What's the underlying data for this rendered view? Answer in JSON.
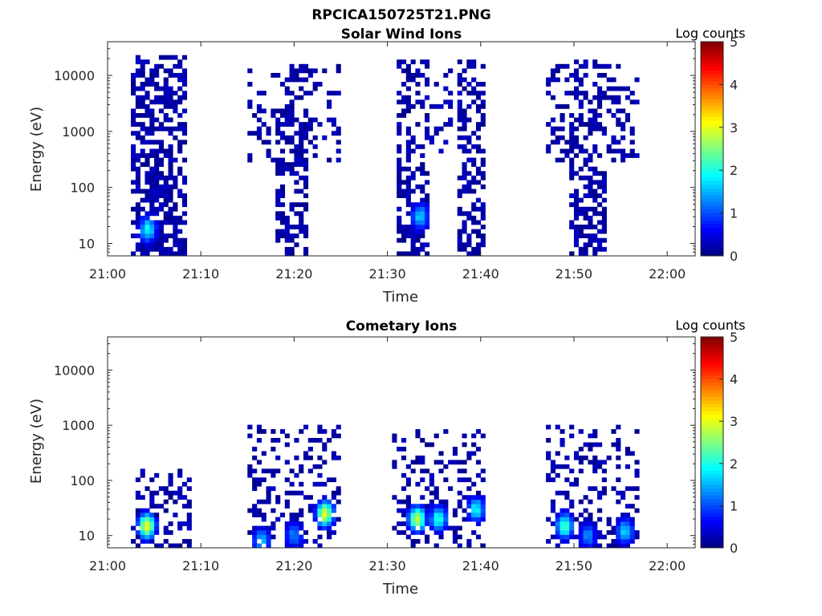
{
  "figure": {
    "title": "RPCICA150725T21.PNG"
  },
  "chart_data": [
    {
      "type": "heatmap",
      "title": "Solar Wind Ions",
      "xlabel": "Time",
      "ylabel": "Energy (eV)",
      "x_range": [
        "21:00",
        "22:03"
      ],
      "y_range_eV": [
        6,
        40000
      ],
      "y_scale": "log",
      "x_tick_labels": [
        "21:00",
        "21:10",
        "21:20",
        "21:30",
        "21:40",
        "21:50",
        "22:00"
      ],
      "y_tick_labels": [
        "10",
        "100",
        "1000",
        "10000"
      ],
      "y_tick_values": [
        10,
        100,
        1000,
        10000
      ],
      "colorbar": {
        "label": "Log counts",
        "min": 0,
        "max": 5,
        "ticks": [
          "0",
          "1",
          "2",
          "3",
          "4",
          "5"
        ],
        "colormap": "jet"
      },
      "grid": false,
      "blocks": [
        {
          "t_start": "21:02.5",
          "t_end": "21:08.5",
          "e_min": 6,
          "e_max": 25000,
          "density": 0.55
        },
        {
          "t_start": "21:15.0",
          "t_end": "21:25.0",
          "e_min": 300,
          "e_max": 15000,
          "density": 0.25
        },
        {
          "t_start": "21:18.0",
          "t_end": "21:21.5",
          "e_min": 6,
          "e_max": 15000,
          "density": 0.45
        },
        {
          "t_start": "21:31.0",
          "t_end": "21:34.5",
          "e_min": 6,
          "e_max": 18000,
          "density": 0.45
        },
        {
          "t_start": "21:34.5",
          "t_end": "21:37.0",
          "e_min": 400,
          "e_max": 15000,
          "density": 0.2
        },
        {
          "t_start": "21:37.5",
          "t_end": "21:40.5",
          "e_min": 6,
          "e_max": 18000,
          "density": 0.45
        },
        {
          "t_start": "21:47.0",
          "t_end": "21:57.0",
          "e_min": 300,
          "e_max": 15000,
          "density": 0.25
        },
        {
          "t_start": "21:49.5",
          "t_end": "21:53.5",
          "e_min": 6,
          "e_max": 18000,
          "density": 0.45
        }
      ],
      "peaks": [
        {
          "t": "21:04.3",
          "e": 18,
          "log_counts": 1.8
        },
        {
          "t": "21:33.5",
          "e": 30,
          "log_counts": 1.6
        }
      ]
    },
    {
      "type": "heatmap",
      "title": "Cometary Ions",
      "xlabel": "Time",
      "ylabel": "Energy (eV)",
      "x_range": [
        "21:00",
        "22:03"
      ],
      "y_range_eV": [
        6,
        40000
      ],
      "y_scale": "log",
      "x_tick_labels": [
        "21:00",
        "21:10",
        "21:20",
        "21:30",
        "21:40",
        "21:50",
        "22:00"
      ],
      "y_tick_labels": [
        "10",
        "100",
        "1000",
        "10000"
      ],
      "y_tick_values": [
        10,
        100,
        1000,
        10000
      ],
      "colorbar": {
        "label": "Log counts",
        "min": 0,
        "max": 5,
        "ticks": [
          "0",
          "1",
          "2",
          "3",
          "4",
          "5"
        ],
        "colormap": "jet"
      },
      "grid": false,
      "blocks": [
        {
          "t_start": "21:02.5",
          "t_end": "21:09.0",
          "e_min": 6,
          "e_max": 150,
          "density": 0.35
        },
        {
          "t_start": "21:15.0",
          "t_end": "21:25.0",
          "e_min": 6,
          "e_max": 1000,
          "density": 0.25
        },
        {
          "t_start": "21:30.5",
          "t_end": "21:40.5",
          "e_min": 6,
          "e_max": 800,
          "density": 0.25
        },
        {
          "t_start": "21:47.0",
          "t_end": "21:57.0",
          "e_min": 6,
          "e_max": 1000,
          "density": 0.25
        }
      ],
      "peaks": [
        {
          "t": "21:04.2",
          "e": 15,
          "log_counts": 3.0
        },
        {
          "t": "21:16.5",
          "e": 8,
          "log_counts": 1.5
        },
        {
          "t": "21:20.0",
          "e": 10,
          "log_counts": 1.2
        },
        {
          "t": "21:23.3",
          "e": 25,
          "log_counts": 3.0
        },
        {
          "t": "21:33.2",
          "e": 20,
          "log_counts": 2.8
        },
        {
          "t": "21:35.5",
          "e": 20,
          "log_counts": 2.0
        },
        {
          "t": "21:39.5",
          "e": 30,
          "log_counts": 1.8
        },
        {
          "t": "21:49.0",
          "e": 15,
          "log_counts": 2.2
        },
        {
          "t": "21:51.5",
          "e": 10,
          "log_counts": 1.2
        },
        {
          "t": "21:55.5",
          "e": 12,
          "log_counts": 1.6
        }
      ]
    }
  ]
}
